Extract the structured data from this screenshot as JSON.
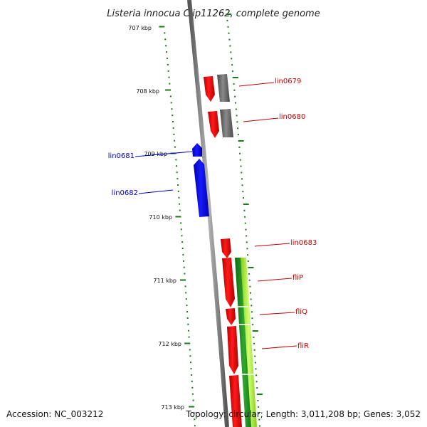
{
  "title": "Listeria innocua Clip11262, complete genome",
  "accession_text": "Accession: NC_003212",
  "summary_text": "Topology: circular; Length: 3,011,208 bp; Genes: 3,052",
  "ruler": {
    "labels": [
      "707 kbp",
      "708 kbp",
      "709 kbp",
      "710 kbp",
      "711 kbp",
      "712 kbp",
      "713 kbp"
    ]
  },
  "genes": [
    {
      "name": "lin0679",
      "strand": "+",
      "color": "#cc0000"
    },
    {
      "name": "lin0680",
      "strand": "+",
      "color": "#cc0000"
    },
    {
      "name": "lin0681",
      "strand": "-",
      "color": "#0000cc"
    },
    {
      "name": "lin0682",
      "strand": "-",
      "color": "#0000cc"
    },
    {
      "name": "lin0683",
      "strand": "+",
      "color": "#cc0000"
    },
    {
      "name": "fliP",
      "strand": "+",
      "color": "#cc0000"
    },
    {
      "name": "fliQ",
      "strand": "+",
      "color": "#cc0000"
    },
    {
      "name": "fliR",
      "strand": "+",
      "color": "#cc0000"
    }
  ],
  "colors": {
    "forward": "#ff0000",
    "reverse": "#0000ff",
    "backbone": "#808080",
    "ticks": "#1a7a1a",
    "cog_gray": "#707070",
    "cog_green_dark": "#1f8a1f",
    "cog_green_light": "#a8e63a"
  }
}
